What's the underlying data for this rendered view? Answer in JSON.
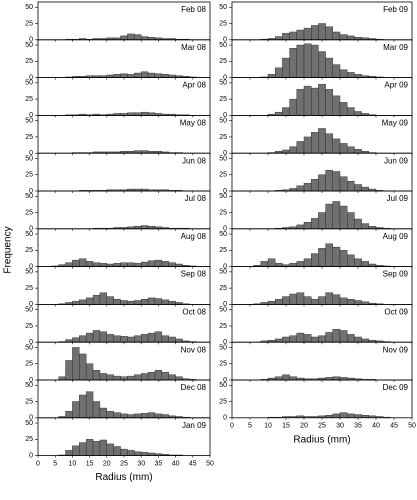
{
  "chart_data": {
    "type": "histogram",
    "x_label": "Radius (mm)",
    "y_label": "Frequency",
    "color": "#707070",
    "bins": [
      0,
      2,
      4,
      6,
      8,
      10,
      12,
      14,
      16,
      18,
      20,
      22,
      24,
      26,
      28,
      30,
      32,
      34,
      36,
      38,
      40,
      42,
      44,
      46,
      48,
      50
    ],
    "xlim": [
      0,
      50
    ],
    "xticks": [
      0,
      5,
      10,
      15,
      20,
      25,
      30,
      35,
      40,
      45,
      50
    ],
    "ylim": [
      0,
      55
    ],
    "yticks": [
      0,
      25,
      50
    ],
    "series": [
      {
        "name": "Feb 08",
        "values": [
          0,
          0,
          0,
          0,
          1,
          1,
          2,
          1,
          2,
          2,
          3,
          3,
          6,
          9,
          8,
          5,
          4,
          3,
          2,
          2,
          1,
          1,
          0,
          0,
          0
        ]
      },
      {
        "name": "Mar 08",
        "values": [
          0,
          0,
          0,
          0,
          1,
          2,
          2,
          3,
          3,
          3,
          4,
          5,
          6,
          5,
          7,
          9,
          7,
          6,
          5,
          4,
          3,
          2,
          1,
          0,
          0
        ]
      },
      {
        "name": "Apr 08",
        "values": [
          0,
          0,
          0,
          0,
          1,
          1,
          2,
          1,
          2,
          1,
          2,
          3,
          3,
          4,
          4,
          5,
          4,
          3,
          2,
          2,
          1,
          1,
          0,
          0,
          0
        ]
      },
      {
        "name": "May 08",
        "values": [
          0,
          0,
          0,
          0,
          0,
          1,
          1,
          1,
          2,
          2,
          2,
          2,
          3,
          3,
          4,
          4,
          3,
          3,
          2,
          1,
          1,
          0,
          0,
          0,
          0
        ]
      },
      {
        "name": "Jun 08",
        "values": [
          0,
          0,
          0,
          0,
          0,
          0,
          1,
          1,
          1,
          1,
          2,
          2,
          2,
          3,
          3,
          3,
          2,
          2,
          2,
          1,
          1,
          0,
          0,
          0,
          0
        ]
      },
      {
        "name": "Jul 08",
        "values": [
          0,
          0,
          0,
          0,
          0,
          0,
          0,
          0,
          1,
          1,
          1,
          2,
          2,
          3,
          4,
          5,
          4,
          3,
          2,
          1,
          1,
          1,
          0,
          0,
          0
        ]
      },
      {
        "name": "Aug 08",
        "values": [
          0,
          0,
          1,
          3,
          6,
          10,
          12,
          8,
          6,
          5,
          4,
          5,
          6,
          6,
          5,
          7,
          9,
          10,
          8,
          6,
          4,
          2,
          1,
          0,
          0
        ]
      },
      {
        "name": "Sep 08",
        "values": [
          0,
          0,
          0,
          1,
          3,
          5,
          7,
          10,
          14,
          18,
          12,
          8,
          6,
          5,
          6,
          8,
          10,
          9,
          7,
          5,
          3,
          1,
          0,
          0,
          0
        ]
      },
      {
        "name": "Oct 08",
        "values": [
          0,
          0,
          0,
          1,
          4,
          7,
          10,
          14,
          18,
          16,
          12,
          10,
          9,
          8,
          10,
          12,
          14,
          16,
          10,
          8,
          5,
          2,
          1,
          0,
          0
        ]
      },
      {
        "name": "Nov 08",
        "values": [
          0,
          0,
          0,
          5,
          30,
          50,
          40,
          25,
          15,
          10,
          8,
          6,
          5,
          6,
          8,
          10,
          12,
          15,
          12,
          8,
          5,
          2,
          1,
          0,
          0
        ]
      },
      {
        "name": "Dec 08",
        "values": [
          0,
          0,
          0,
          2,
          10,
          25,
          35,
          40,
          25,
          15,
          10,
          8,
          6,
          5,
          6,
          7,
          8,
          6,
          5,
          3,
          2,
          1,
          0,
          0,
          0
        ]
      },
      {
        "name": "Jan 09",
        "values": [
          0,
          0,
          0,
          1,
          8,
          15,
          20,
          25,
          22,
          24,
          18,
          14,
          10,
          8,
          6,
          5,
          4,
          3,
          2,
          1,
          1,
          0,
          0,
          0,
          0
        ]
      },
      {
        "name": "Feb 09",
        "values": [
          0,
          0,
          0,
          0,
          1,
          2,
          5,
          10,
          12,
          15,
          18,
          22,
          25,
          20,
          12,
          8,
          6,
          4,
          3,
          2,
          1,
          0,
          0,
          0,
          0
        ]
      },
      {
        "name": "Mar 09",
        "values": [
          0,
          0,
          0,
          0,
          1,
          5,
          15,
          30,
          45,
          50,
          52,
          50,
          40,
          30,
          20,
          12,
          8,
          5,
          3,
          2,
          1,
          0,
          0,
          0,
          0
        ]
      },
      {
        "name": "Apr 09",
        "values": [
          0,
          0,
          0,
          0,
          0,
          2,
          5,
          12,
          25,
          40,
          45,
          42,
          48,
          40,
          30,
          20,
          12,
          6,
          3,
          1,
          0,
          0,
          0,
          0,
          0
        ]
      },
      {
        "name": "May 09",
        "values": [
          0,
          0,
          0,
          0,
          0,
          1,
          3,
          5,
          10,
          18,
          25,
          32,
          38,
          30,
          22,
          15,
          10,
          6,
          3,
          1,
          0,
          0,
          0,
          0,
          0
        ]
      },
      {
        "name": "Jun 09",
        "values": [
          0,
          0,
          0,
          0,
          0,
          0,
          1,
          2,
          4,
          8,
          12,
          18,
          25,
          32,
          30,
          22,
          15,
          10,
          6,
          3,
          1,
          0,
          0,
          0,
          0
        ]
      },
      {
        "name": "Jul 09",
        "values": [
          0,
          0,
          0,
          0,
          0,
          0,
          1,
          2,
          3,
          6,
          10,
          16,
          25,
          38,
          42,
          35,
          25,
          15,
          8,
          4,
          2,
          1,
          0,
          0,
          0
        ]
      },
      {
        "name": "Aug 09",
        "values": [
          0,
          0,
          0,
          2,
          8,
          12,
          5,
          3,
          5,
          8,
          12,
          20,
          28,
          35,
          30,
          25,
          18,
          12,
          8,
          4,
          2,
          1,
          0,
          0,
          0
        ]
      },
      {
        "name": "Sep 09",
        "values": [
          0,
          0,
          0,
          1,
          3,
          5,
          8,
          12,
          16,
          18,
          12,
          8,
          12,
          18,
          15,
          10,
          8,
          6,
          4,
          2,
          1,
          0,
          0,
          0,
          0
        ]
      },
      {
        "name": "Oct 09",
        "values": [
          0,
          0,
          0,
          0,
          2,
          3,
          5,
          8,
          10,
          14,
          12,
          8,
          10,
          15,
          20,
          18,
          12,
          8,
          5,
          3,
          2,
          1,
          0,
          0,
          0
        ]
      },
      {
        "name": "Nov 09",
        "values": [
          0,
          0,
          0,
          0,
          1,
          3,
          5,
          8,
          5,
          3,
          2,
          2,
          3,
          4,
          5,
          4,
          3,
          2,
          1,
          1,
          0,
          0,
          0,
          0,
          0
        ]
      },
      {
        "name": "Dec 09",
        "values": [
          0,
          0,
          0,
          0,
          0,
          1,
          1,
          2,
          2,
          3,
          2,
          2,
          3,
          4,
          6,
          8,
          6,
          5,
          4,
          3,
          2,
          1,
          0,
          0,
          0
        ]
      }
    ]
  }
}
